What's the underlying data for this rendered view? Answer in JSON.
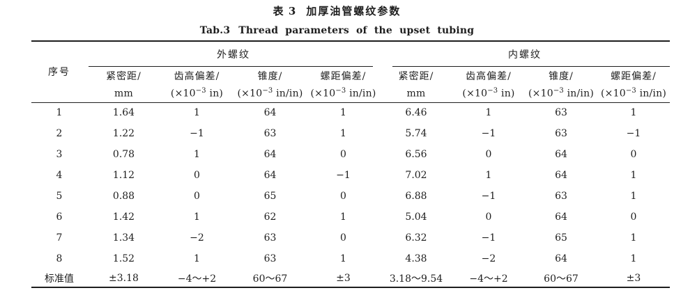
{
  "page": {
    "background": "#ffffff",
    "text_color": "#1e1e1e",
    "rule_color": "#1e1e1e"
  },
  "title": {
    "zh_label": "表 3",
    "zh_text": "加厚油管螺纹参数",
    "en_label": "Tab.3",
    "en_text": "Thread parameters of the upset tubing"
  },
  "table": {
    "corner_header": "序号",
    "groups": [
      {
        "label": "外螺纹"
      },
      {
        "label": "内螺纹"
      }
    ],
    "columns": [
      {
        "name": "紧密距/",
        "unit_pre": "mm",
        "unit_sup": "",
        "unit_post": ""
      },
      {
        "name": "齿高偏差/",
        "unit_pre": "(×10",
        "unit_sup": "−3",
        "unit_post": " in)"
      },
      {
        "name": "锥度/",
        "unit_pre": "(×10",
        "unit_sup": "−3",
        "unit_post": " in/in)"
      },
      {
        "name": "螺距偏差/",
        "unit_pre": "(×10",
        "unit_sup": "−3",
        "unit_post": " in/in)"
      }
    ],
    "rows": [
      {
        "id": "1",
        "ext": [
          "1.64",
          "1",
          "64",
          "1"
        ],
        "int": [
          "6.46",
          "1",
          "63",
          "1"
        ]
      },
      {
        "id": "2",
        "ext": [
          "1.22",
          "−1",
          "63",
          "1"
        ],
        "int": [
          "5.74",
          "−1",
          "63",
          "−1"
        ]
      },
      {
        "id": "3",
        "ext": [
          "0.78",
          "1",
          "64",
          "0"
        ],
        "int": [
          "6.56",
          "0",
          "64",
          "0"
        ]
      },
      {
        "id": "4",
        "ext": [
          "1.12",
          "0",
          "64",
          "−1"
        ],
        "int": [
          "7.02",
          "1",
          "64",
          "1"
        ]
      },
      {
        "id": "5",
        "ext": [
          "0.88",
          "0",
          "65",
          "0"
        ],
        "int": [
          "6.88",
          "−1",
          "63",
          "1"
        ]
      },
      {
        "id": "6",
        "ext": [
          "1.42",
          "1",
          "62",
          "1"
        ],
        "int": [
          "5.04",
          "0",
          "64",
          "0"
        ]
      },
      {
        "id": "7",
        "ext": [
          "1.34",
          "−2",
          "63",
          "0"
        ],
        "int": [
          "6.32",
          "−1",
          "65",
          "1"
        ]
      },
      {
        "id": "8",
        "ext": [
          "1.52",
          "1",
          "63",
          "1"
        ],
        "int": [
          "4.38",
          "−2",
          "64",
          "1"
        ]
      }
    ],
    "standard_row": {
      "id": "标准值",
      "ext": [
        "±3.18",
        "−4～+2",
        "60～67",
        "±3"
      ],
      "int": [
        "3.18～9.54",
        "−4～+2",
        "60～67",
        "±3"
      ]
    }
  }
}
